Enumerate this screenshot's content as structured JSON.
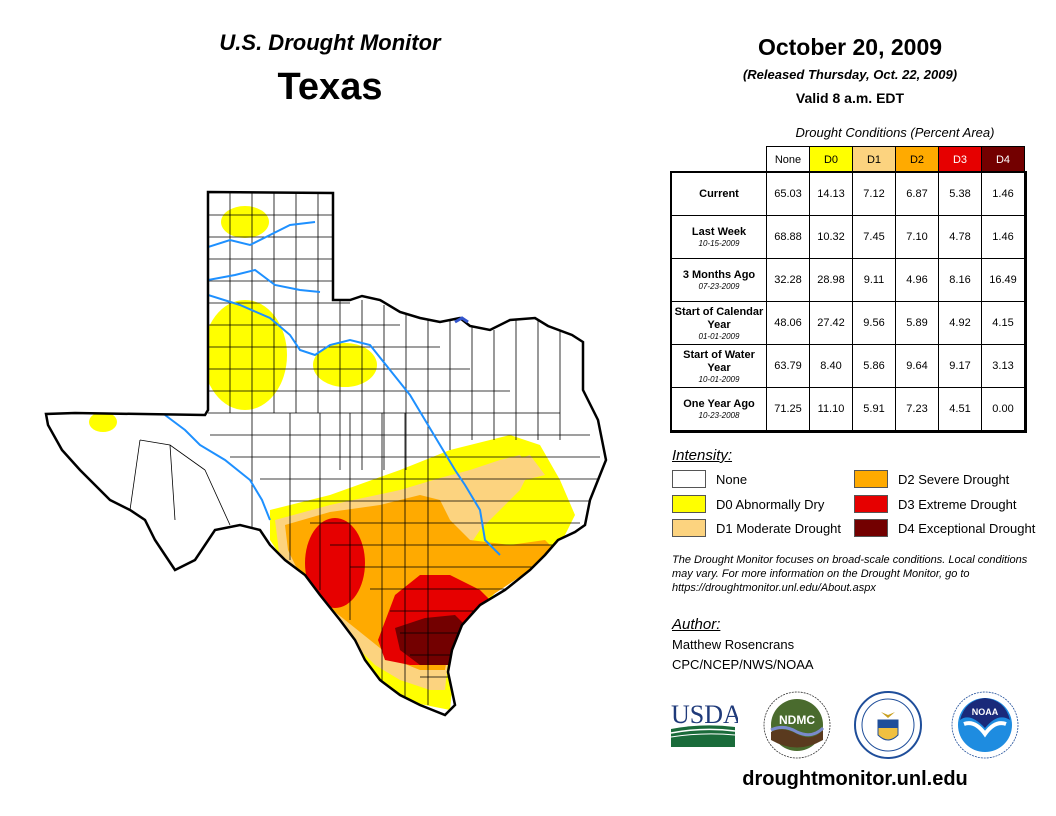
{
  "header": {
    "title": "U.S. Drought Monitor",
    "region": "Texas",
    "date": "October 20, 2009",
    "released": "(Released Thursday, Oct. 22, 2009)",
    "valid": "Valid 8 a.m. EDT"
  },
  "table": {
    "caption": "Drought Conditions (Percent Area)",
    "columns": [
      {
        "label": "None",
        "color": "#ffffff",
        "text_color": "#000000"
      },
      {
        "label": "D0",
        "color": "#ffff00",
        "text_color": "#000000"
      },
      {
        "label": "D1",
        "color": "#fcd37f",
        "text_color": "#000000"
      },
      {
        "label": "D2",
        "color": "#ffaa00",
        "text_color": "#000000"
      },
      {
        "label": "D3",
        "color": "#e60000",
        "text_color": "#ffffff"
      },
      {
        "label": "D4",
        "color": "#730000",
        "text_color": "#ffffff"
      }
    ],
    "rows": [
      {
        "label": "Current",
        "date": "",
        "values": [
          "65.03",
          "14.13",
          "7.12",
          "6.87",
          "5.38",
          "1.46"
        ]
      },
      {
        "label": "Last Week",
        "date": "10-15-2009",
        "values": [
          "68.88",
          "10.32",
          "7.45",
          "7.10",
          "4.78",
          "1.46"
        ]
      },
      {
        "label": "3 Months Ago",
        "date": "07-23-2009",
        "values": [
          "32.28",
          "28.98",
          "9.11",
          "4.96",
          "8.16",
          "16.49"
        ]
      },
      {
        "label": "Start of Calendar Year",
        "date": "01-01-2009",
        "values": [
          "48.06",
          "27.42",
          "9.56",
          "5.89",
          "4.92",
          "4.15"
        ]
      },
      {
        "label": "Start of Water Year",
        "date": "10-01-2009",
        "values": [
          "63.79",
          "8.40",
          "5.86",
          "9.64",
          "9.17",
          "3.13"
        ]
      },
      {
        "label": "One Year Ago",
        "date": "10-23-2008",
        "values": [
          "71.25",
          "11.10",
          "5.91",
          "7.23",
          "4.51",
          "0.00"
        ]
      }
    ]
  },
  "legend": {
    "title": "Intensity:",
    "items": [
      {
        "label": "None",
        "color": "#ffffff"
      },
      {
        "label": "D0 Abnormally Dry",
        "color": "#ffff00"
      },
      {
        "label": "D1 Moderate Drought",
        "color": "#fcd37f"
      },
      {
        "label": "D2 Severe Drought",
        "color": "#ffaa00"
      },
      {
        "label": "D3 Extreme Drought",
        "color": "#e60000"
      },
      {
        "label": "D4 Exceptional Drought",
        "color": "#730000"
      }
    ]
  },
  "note": "The Drought Monitor focuses on broad-scale conditions. Local conditions may vary. For more information on the Drought Monitor, go to https://droughtmonitor.unl.edu/About.aspx",
  "author": {
    "heading": "Author:",
    "name": "Matthew Rosencrans",
    "org": "CPC/NCEP/NWS/NOAA"
  },
  "logos": [
    {
      "name": "USDA",
      "text": "USDA"
    },
    {
      "name": "NDMC",
      "text": "NDMC"
    },
    {
      "name": "Department of Commerce",
      "text": ""
    },
    {
      "name": "NOAA",
      "text": "NOAA"
    }
  ],
  "website": "droughtmonitor.unl.edu",
  "map": {
    "river_color": "#1e90ff",
    "boundary_color": "#000000"
  }
}
